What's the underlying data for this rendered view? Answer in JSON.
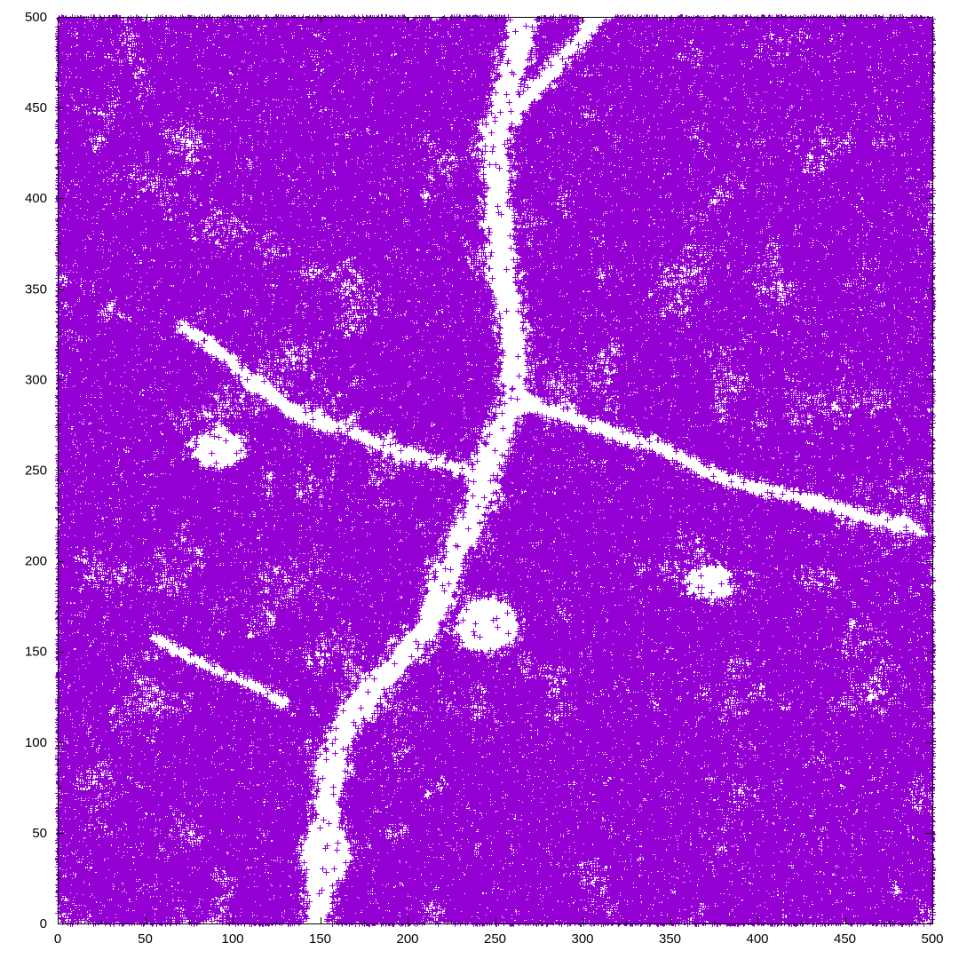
{
  "chart_data": {
    "type": "scatter",
    "title": "",
    "xlabel": "",
    "ylabel": "",
    "xlim": [
      0,
      500
    ],
    "ylim": [
      0,
      500
    ],
    "x_ticks": [
      0,
      50,
      100,
      150,
      200,
      250,
      300,
      350,
      400,
      450,
      500
    ],
    "y_ticks": [
      0,
      50,
      100,
      150,
      200,
      250,
      300,
      350,
      400,
      450,
      500
    ],
    "x_tick_labels": [
      "0",
      "50",
      "100",
      "150",
      "200",
      "250",
      "300",
      "350",
      "400",
      "450",
      "500"
    ],
    "y_tick_labels": [
      "0",
      "50",
      "100",
      "150",
      "200",
      "250",
      "300",
      "350",
      "400",
      "450",
      "500"
    ],
    "grid": false,
    "legend": "none",
    "marker": "plus",
    "marker_color": "#9400d3",
    "description_of_data": "Dense cloud of '+' markers covering the 500x500 domain; a sparse channel network runs from the bottom near x≈145-160 upward through (245,165), (255,270), (270,300) to the top near x≈255-300.",
    "series": [
      {
        "domain": [
          0,
          500,
          0,
          500
        ],
        "approx_marker_count": 250000,
        "voids": {
          "main_channel": [
            [
              148,
              0
            ],
            [
              150,
              20
            ],
            [
              153,
              45
            ],
            [
              155,
              70
            ],
            [
              160,
              100
            ],
            [
              172,
              120
            ],
            [
              185,
              135
            ],
            [
              200,
              150
            ],
            [
              212,
              165
            ],
            [
              222,
              190
            ],
            [
              232,
              215
            ],
            [
              242,
              240
            ],
            [
              250,
              262
            ],
            [
              258,
              282
            ],
            [
              262,
              300
            ],
            [
              258,
              330
            ],
            [
              255,
              360
            ],
            [
              252,
              390
            ],
            [
              250,
              415
            ],
            [
              252,
              440
            ],
            [
              256,
              460
            ],
            [
              262,
              480
            ],
            [
              268,
              500
            ]
          ],
          "upper_branch": [
            [
              258,
              445
            ],
            [
              268,
              455
            ],
            [
              282,
              470
            ],
            [
              298,
              488
            ],
            [
              310,
              500
            ]
          ],
          "right_branch": [
            [
              262,
              288
            ],
            [
              290,
              280
            ],
            [
              320,
              270
            ],
            [
              345,
              262
            ],
            [
              380,
              245
            ],
            [
              420,
              236
            ],
            [
              460,
              225
            ],
            [
              490,
              218
            ]
          ],
          "left_branch": [
            [
              240,
              248
            ],
            [
              215,
              256
            ],
            [
              190,
              262
            ],
            [
              165,
              272
            ],
            [
              135,
              282
            ],
            [
              110,
              300
            ],
            [
              90,
              318
            ],
            [
              70,
              330
            ]
          ],
          "lower_left_branch": [
            [
              130,
              122
            ],
            [
              110,
              132
            ],
            [
              90,
              140
            ],
            [
              72,
              148
            ],
            [
              55,
              157
            ]
          ],
          "center_pool": [
            [
              245,
              165
            ],
            [
              18,
              15
            ]
          ],
          "bottom_pool": [
            [
              153,
              38
            ],
            [
              14,
              16
            ]
          ],
          "left_pool": [
            [
              92,
              262
            ],
            [
              15,
              10
            ]
          ],
          "right_pool": [
            [
              372,
              188
            ],
            [
              12,
              9
            ]
          ]
        }
      }
    ]
  }
}
